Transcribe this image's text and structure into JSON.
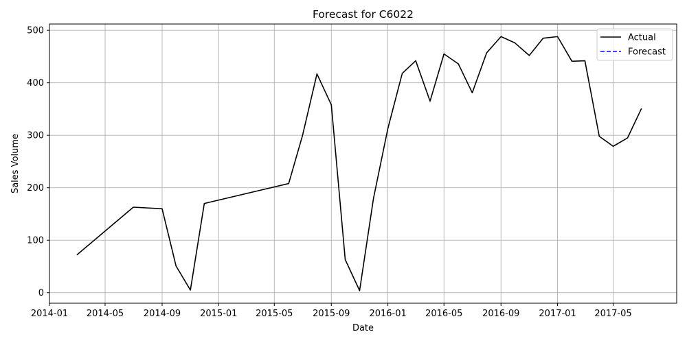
{
  "chart_data": {
    "type": "line",
    "title": "Forecast for C6022",
    "xlabel": "Date",
    "ylabel": "Sales Volume",
    "x_ticks": [
      "2014-01",
      "2014-05",
      "2014-09",
      "2015-01",
      "2015-05",
      "2015-09",
      "2016-01",
      "2016-05",
      "2016-09",
      "2017-01",
      "2017-05"
    ],
    "y_ticks": [
      0,
      100,
      200,
      300,
      400,
      500
    ],
    "ylim": [
      -20,
      512
    ],
    "xlim": [
      "2014-01-01",
      "2017-09-15"
    ],
    "grid": true,
    "legend_position": "top-right",
    "series": [
      {
        "name": "Actual",
        "color": "#000000",
        "style": "solid",
        "points": [
          [
            "2014-03-01",
            72
          ],
          [
            "2014-07-01",
            163
          ],
          [
            "2014-09-01",
            160
          ],
          [
            "2014-10-01",
            51
          ],
          [
            "2014-11-01",
            5
          ],
          [
            "2014-12-01",
            170
          ],
          [
            "2015-06-01",
            208
          ],
          [
            "2015-07-01",
            300
          ],
          [
            "2015-08-01",
            417
          ],
          [
            "2015-09-01",
            358
          ],
          [
            "2015-10-01",
            63
          ],
          [
            "2015-11-01",
            4
          ],
          [
            "2015-12-01",
            180
          ],
          [
            "2016-01-01",
            313
          ],
          [
            "2016-02-01",
            418
          ],
          [
            "2016-03-01",
            442
          ],
          [
            "2016-04-01",
            365
          ],
          [
            "2016-05-01",
            455
          ],
          [
            "2016-06-01",
            436
          ],
          [
            "2016-07-01",
            381
          ],
          [
            "2016-08-01",
            457
          ],
          [
            "2016-09-01",
            488
          ],
          [
            "2016-10-01",
            476
          ],
          [
            "2016-11-01",
            452
          ],
          [
            "2016-12-01",
            485
          ],
          [
            "2017-01-01",
            488
          ],
          [
            "2017-02-01",
            441
          ],
          [
            "2017-03-01",
            442
          ],
          [
            "2017-04-01",
            298
          ],
          [
            "2017-05-01",
            279
          ],
          [
            "2017-06-01",
            295
          ],
          [
            "2017-07-01",
            351
          ]
        ]
      },
      {
        "name": "Forecast",
        "color": "#0000ff",
        "style": "dashed",
        "points": []
      }
    ]
  }
}
